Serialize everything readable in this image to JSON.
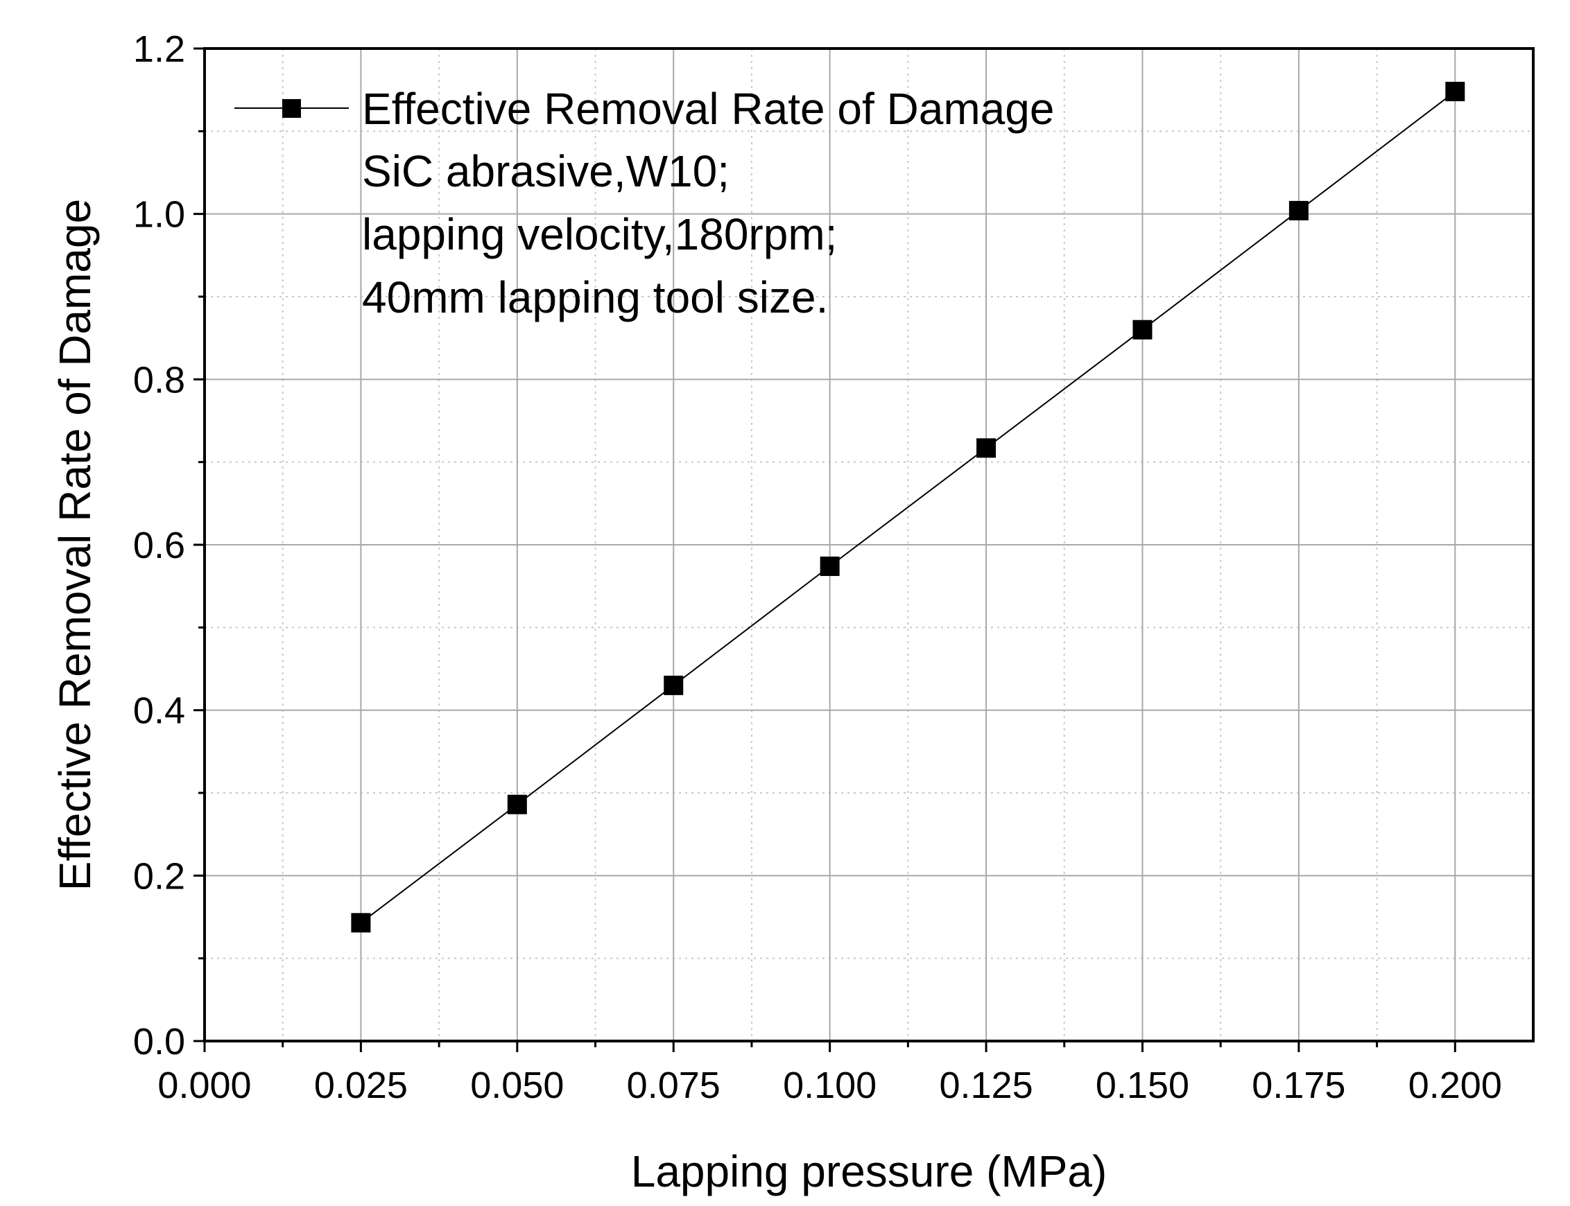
{
  "chart_data": {
    "type": "line",
    "title": "",
    "xlabel": "Lapping pressure (MPa)",
    "ylabel": "Effective Removal Rate of Damage",
    "xlim": [
      0.0,
      0.2125
    ],
    "ylim": [
      0.0,
      1.2
    ],
    "x_ticks": [
      "0.000",
      "0.025",
      "0.050",
      "0.075",
      "0.100",
      "0.125",
      "0.150",
      "0.175",
      "0.200"
    ],
    "y_ticks": [
      "0.0",
      "0.2",
      "0.4",
      "0.6",
      "0.8",
      "1.0",
      "1.2"
    ],
    "grid": true,
    "legend_position": "top-left",
    "series": [
      {
        "name": "Effective Removal Rate of Damage",
        "marker": "square",
        "color": "#000000",
        "x": [
          0.025,
          0.05,
          0.075,
          0.1,
          0.125,
          0.15,
          0.175,
          0.2
        ],
        "y": [
          0.143,
          0.286,
          0.43,
          0.574,
          0.717,
          0.86,
          1.004,
          1.148
        ]
      }
    ],
    "annotation_lines": [
      "SiC abrasive,W10;",
      "lapping velocity,180rpm;",
      "40mm lapping tool size."
    ]
  }
}
